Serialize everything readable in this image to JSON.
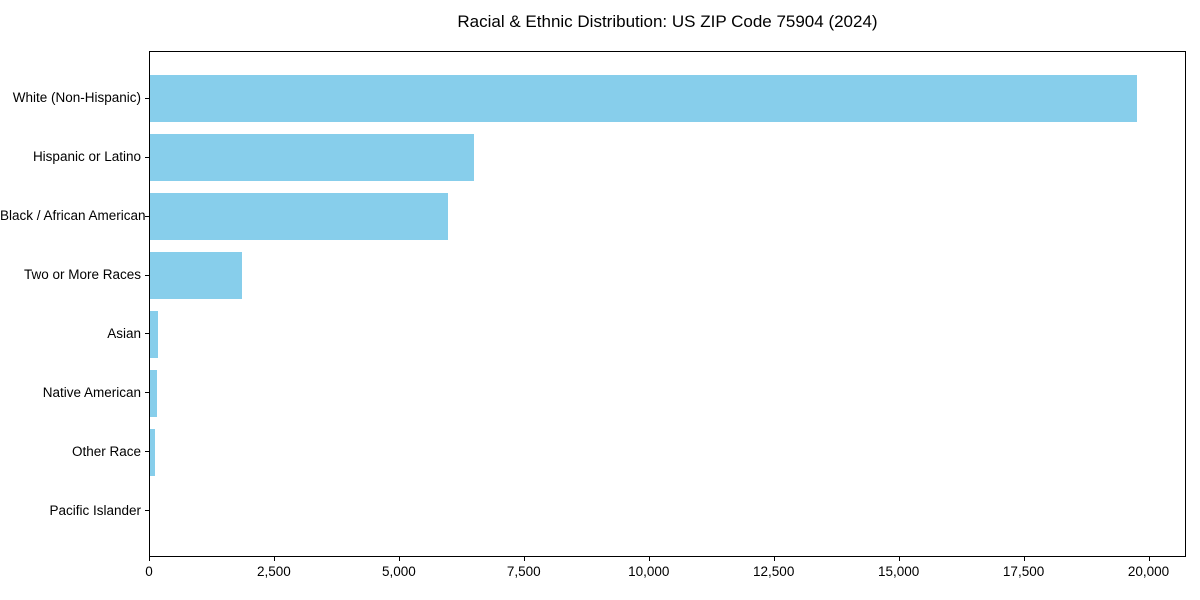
{
  "chart_data": {
    "type": "bar",
    "orientation": "horizontal",
    "title": "Racial & Ethnic Distribution: US ZIP Code 75904 (2024)",
    "categories": [
      "White (Non-Hispanic)",
      "Hispanic or Latino",
      "Black / African American",
      "Two or More Races",
      "Asian",
      "Native American",
      "Other Race",
      "Pacific Islander"
    ],
    "values": [
      19750,
      6490,
      5960,
      1840,
      160,
      145,
      95,
      0
    ],
    "xlabel": "",
    "ylabel": "",
    "xlim": [
      0,
      20750
    ],
    "xticks": [
      0,
      2500,
      5000,
      7500,
      10000,
      12500,
      15000,
      17500,
      20000
    ],
    "xtick_labels": [
      "0",
      "2,500",
      "5,000",
      "7,500",
      "10,000",
      "12,500",
      "15,000",
      "17,500",
      "20,000"
    ],
    "bar_color": "#87CEEB",
    "background_color": "#ffffff",
    "spine_color": "#000000",
    "grid": false,
    "legend": null
  }
}
